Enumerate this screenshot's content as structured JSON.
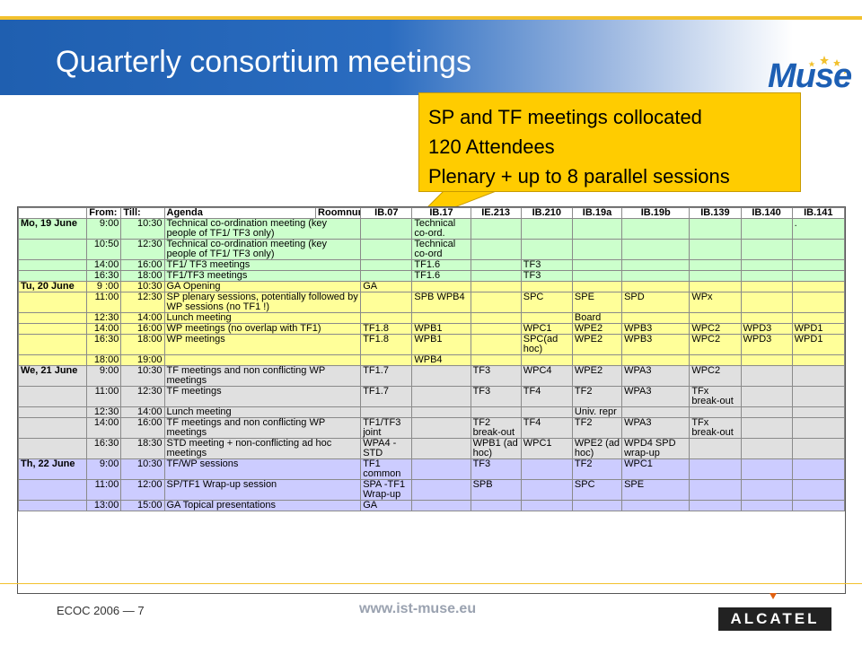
{
  "slide": {
    "title": "Quarterly consortium meetings",
    "logo_text": "Muse",
    "callout_lines": [
      "SP and TF meetings collocated",
      "120 Attendees",
      "Plenary + up to 8 parallel sessions"
    ],
    "footer_left": "ECOC 2006 — 7",
    "footer_url": "www.ist-muse.eu",
    "company": "ALCATEL"
  },
  "colors": {
    "mon": "#ccffcc",
    "tue": "#ffff99",
    "wed": "#e0e0e0",
    "thu": "#ccccff",
    "callout": "#ffcc00",
    "brand_blue": "#1f5fb0"
  },
  "table": {
    "headers": [
      "",
      "From:",
      "Till:",
      "Agenda",
      "Roomnumber:",
      "IB.07",
      "IB.17",
      "IE.213",
      "IB.210",
      "IB.19a",
      "IB.19b",
      "IB.139",
      "IB.140",
      "IB.141"
    ],
    "rows": [
      {
        "day": "mon",
        "cells": [
          "Mo, 19 June",
          "9:00",
          "10:30",
          "Technical co-ordination meeting (key people of TF1/ TF3 only)",
          "",
          "Technical co-ord.",
          "",
          "",
          "",
          "",
          "",
          "",
          "."
        ]
      },
      {
        "day": "mon",
        "cells": [
          "",
          "10:50",
          "12:30",
          "Technical co-ordination meeting (key people of TF1/ TF3 only)",
          "",
          "Technical co-ord",
          "",
          "",
          "",
          "",
          "",
          "",
          ""
        ]
      },
      {
        "day": "mon",
        "cells": [
          "",
          "14:00",
          "16:00",
          "TF1/ TF3 meetings",
          "",
          "TF1.6",
          "",
          "TF3",
          "",
          "",
          "",
          "",
          ""
        ]
      },
      {
        "day": "mon",
        "cells": [
          "",
          "16:30",
          "18:00",
          "TF1/TF3 meetings",
          "",
          "TF1.6",
          "",
          "TF3",
          "",
          "",
          "",
          "",
          ""
        ]
      },
      {
        "day": "tue",
        "cells": [
          "Tu, 20 June",
          "9 :00",
          "10:30",
          "GA Opening",
          "GA",
          "",
          "",
          "",
          "",
          "",
          "",
          "",
          ""
        ]
      },
      {
        "day": "tue",
        "cells": [
          "",
          "11:00",
          "12:30",
          "SP plenary sessions, potentially followed by WP sessions (no TF1 !)",
          "",
          "SPB WPB4",
          "",
          "SPC",
          "SPE",
          "SPD",
          "WPx",
          "",
          ""
        ]
      },
      {
        "day": "tue",
        "cells": [
          "",
          "12:30",
          "14:00",
          "Lunch meeting",
          "",
          "",
          "",
          "",
          "Board",
          "",
          "",
          "",
          ""
        ]
      },
      {
        "day": "tue",
        "cells": [
          "",
          "14:00",
          "16:00",
          "WP meetings (no overlap with TF1)",
          "TF1.8",
          "WPB1",
          "",
          "WPC1",
          "WPE2",
          "WPB3",
          "WPC2",
          "WPD3",
          "WPD1"
        ]
      },
      {
        "day": "tue",
        "cells": [
          "",
          "16:30",
          "18:00",
          "WP meetings",
          "TF1.8",
          "WPB1",
          "",
          "SPC(ad hoc)",
          "WPE2",
          "WPB3",
          "WPC2",
          "WPD3",
          "WPD1"
        ]
      },
      {
        "day": "tue",
        "cells": [
          "",
          "18:00",
          "19:00",
          "",
          "",
          "WPB4",
          "",
          "",
          "",
          "",
          "",
          "",
          ""
        ]
      },
      {
        "day": "wed",
        "cells": [
          "We, 21 June",
          "9:00",
          "10:30",
          "TF meetings and non conflicting WP meetings",
          "TF1.7",
          "",
          "TF3",
          "WPC4",
          "WPE2",
          "WPA3",
          "WPC2",
          "",
          ""
        ]
      },
      {
        "day": "wed",
        "cells": [
          "",
          "11:00",
          "12:30",
          "TF meetings",
          "TF1.7",
          "",
          "TF3",
          "TF4",
          "TF2",
          "WPA3",
          "TFx break-out",
          "",
          ""
        ]
      },
      {
        "day": "wed",
        "cells": [
          "",
          "12:30",
          "14:00",
          "Lunch meeting",
          "",
          "",
          "",
          "",
          "Univ. repr",
          "",
          "",
          "",
          ""
        ]
      },
      {
        "day": "wed",
        "cells": [
          "",
          "14:00",
          "16:00",
          "TF meetings and non conflicting WP meetings",
          "TF1/TF3 joint",
          "",
          "TF2 break-out",
          "TF4",
          "TF2",
          "WPA3",
          "TFx break-out",
          "",
          ""
        ]
      },
      {
        "day": "wed",
        "cells": [
          "",
          "16:30",
          "18:30",
          "STD meeting + non-conflicting ad hoc meetings",
          "WPA4 - STD",
          "",
          "WPB1 (ad hoc)",
          "WPC1",
          "WPE2 (ad hoc)",
          "WPD4 SPD wrap-up",
          "",
          "",
          ""
        ]
      },
      {
        "day": "thu",
        "cells": [
          "Th, 22 June",
          "9:00",
          "10:30",
          "TF/WP sessions",
          "TF1 common",
          "",
          "TF3",
          "",
          "TF2",
          "WPC1",
          "",
          "",
          ""
        ]
      },
      {
        "day": "thu",
        "cells": [
          "",
          "11:00",
          "12:00",
          "SP/TF1 Wrap-up session",
          "SPA -TF1 Wrap-up",
          "",
          "SPB",
          "",
          "SPC",
          "SPE",
          "",
          "",
          ""
        ]
      },
      {
        "day": "thu",
        "cells": [
          "",
          "13:00",
          "15:00",
          "GA Topical presentations",
          "GA",
          "",
          "",
          "",
          "",
          "",
          "",
          "",
          ""
        ]
      }
    ]
  }
}
